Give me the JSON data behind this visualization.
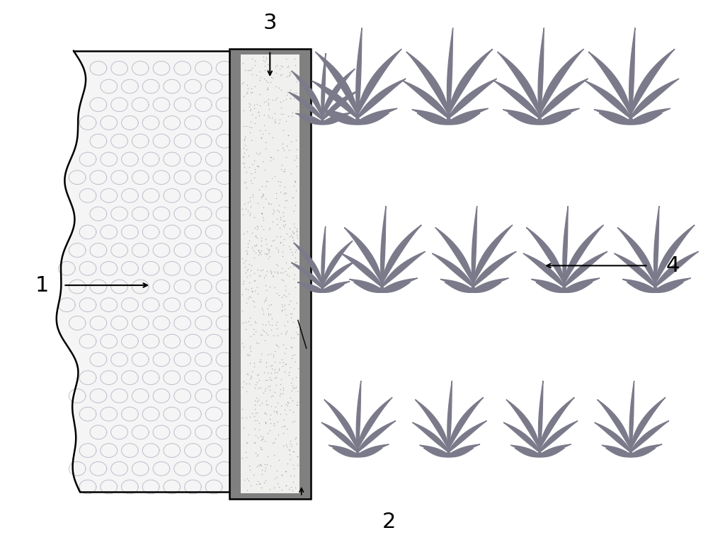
{
  "bg_color": "#ffffff",
  "label1": "1",
  "label2": "2",
  "label3": "3",
  "label4": "4",
  "plant_color": "#7a7a8a",
  "ridge_outer_color": "#808080",
  "net_bg_color": "#f5f5f5",
  "net_line_color": "#b8b8c8",
  "dot_color": "#999999",
  "figsize": [
    10.0,
    7.56
  ]
}
